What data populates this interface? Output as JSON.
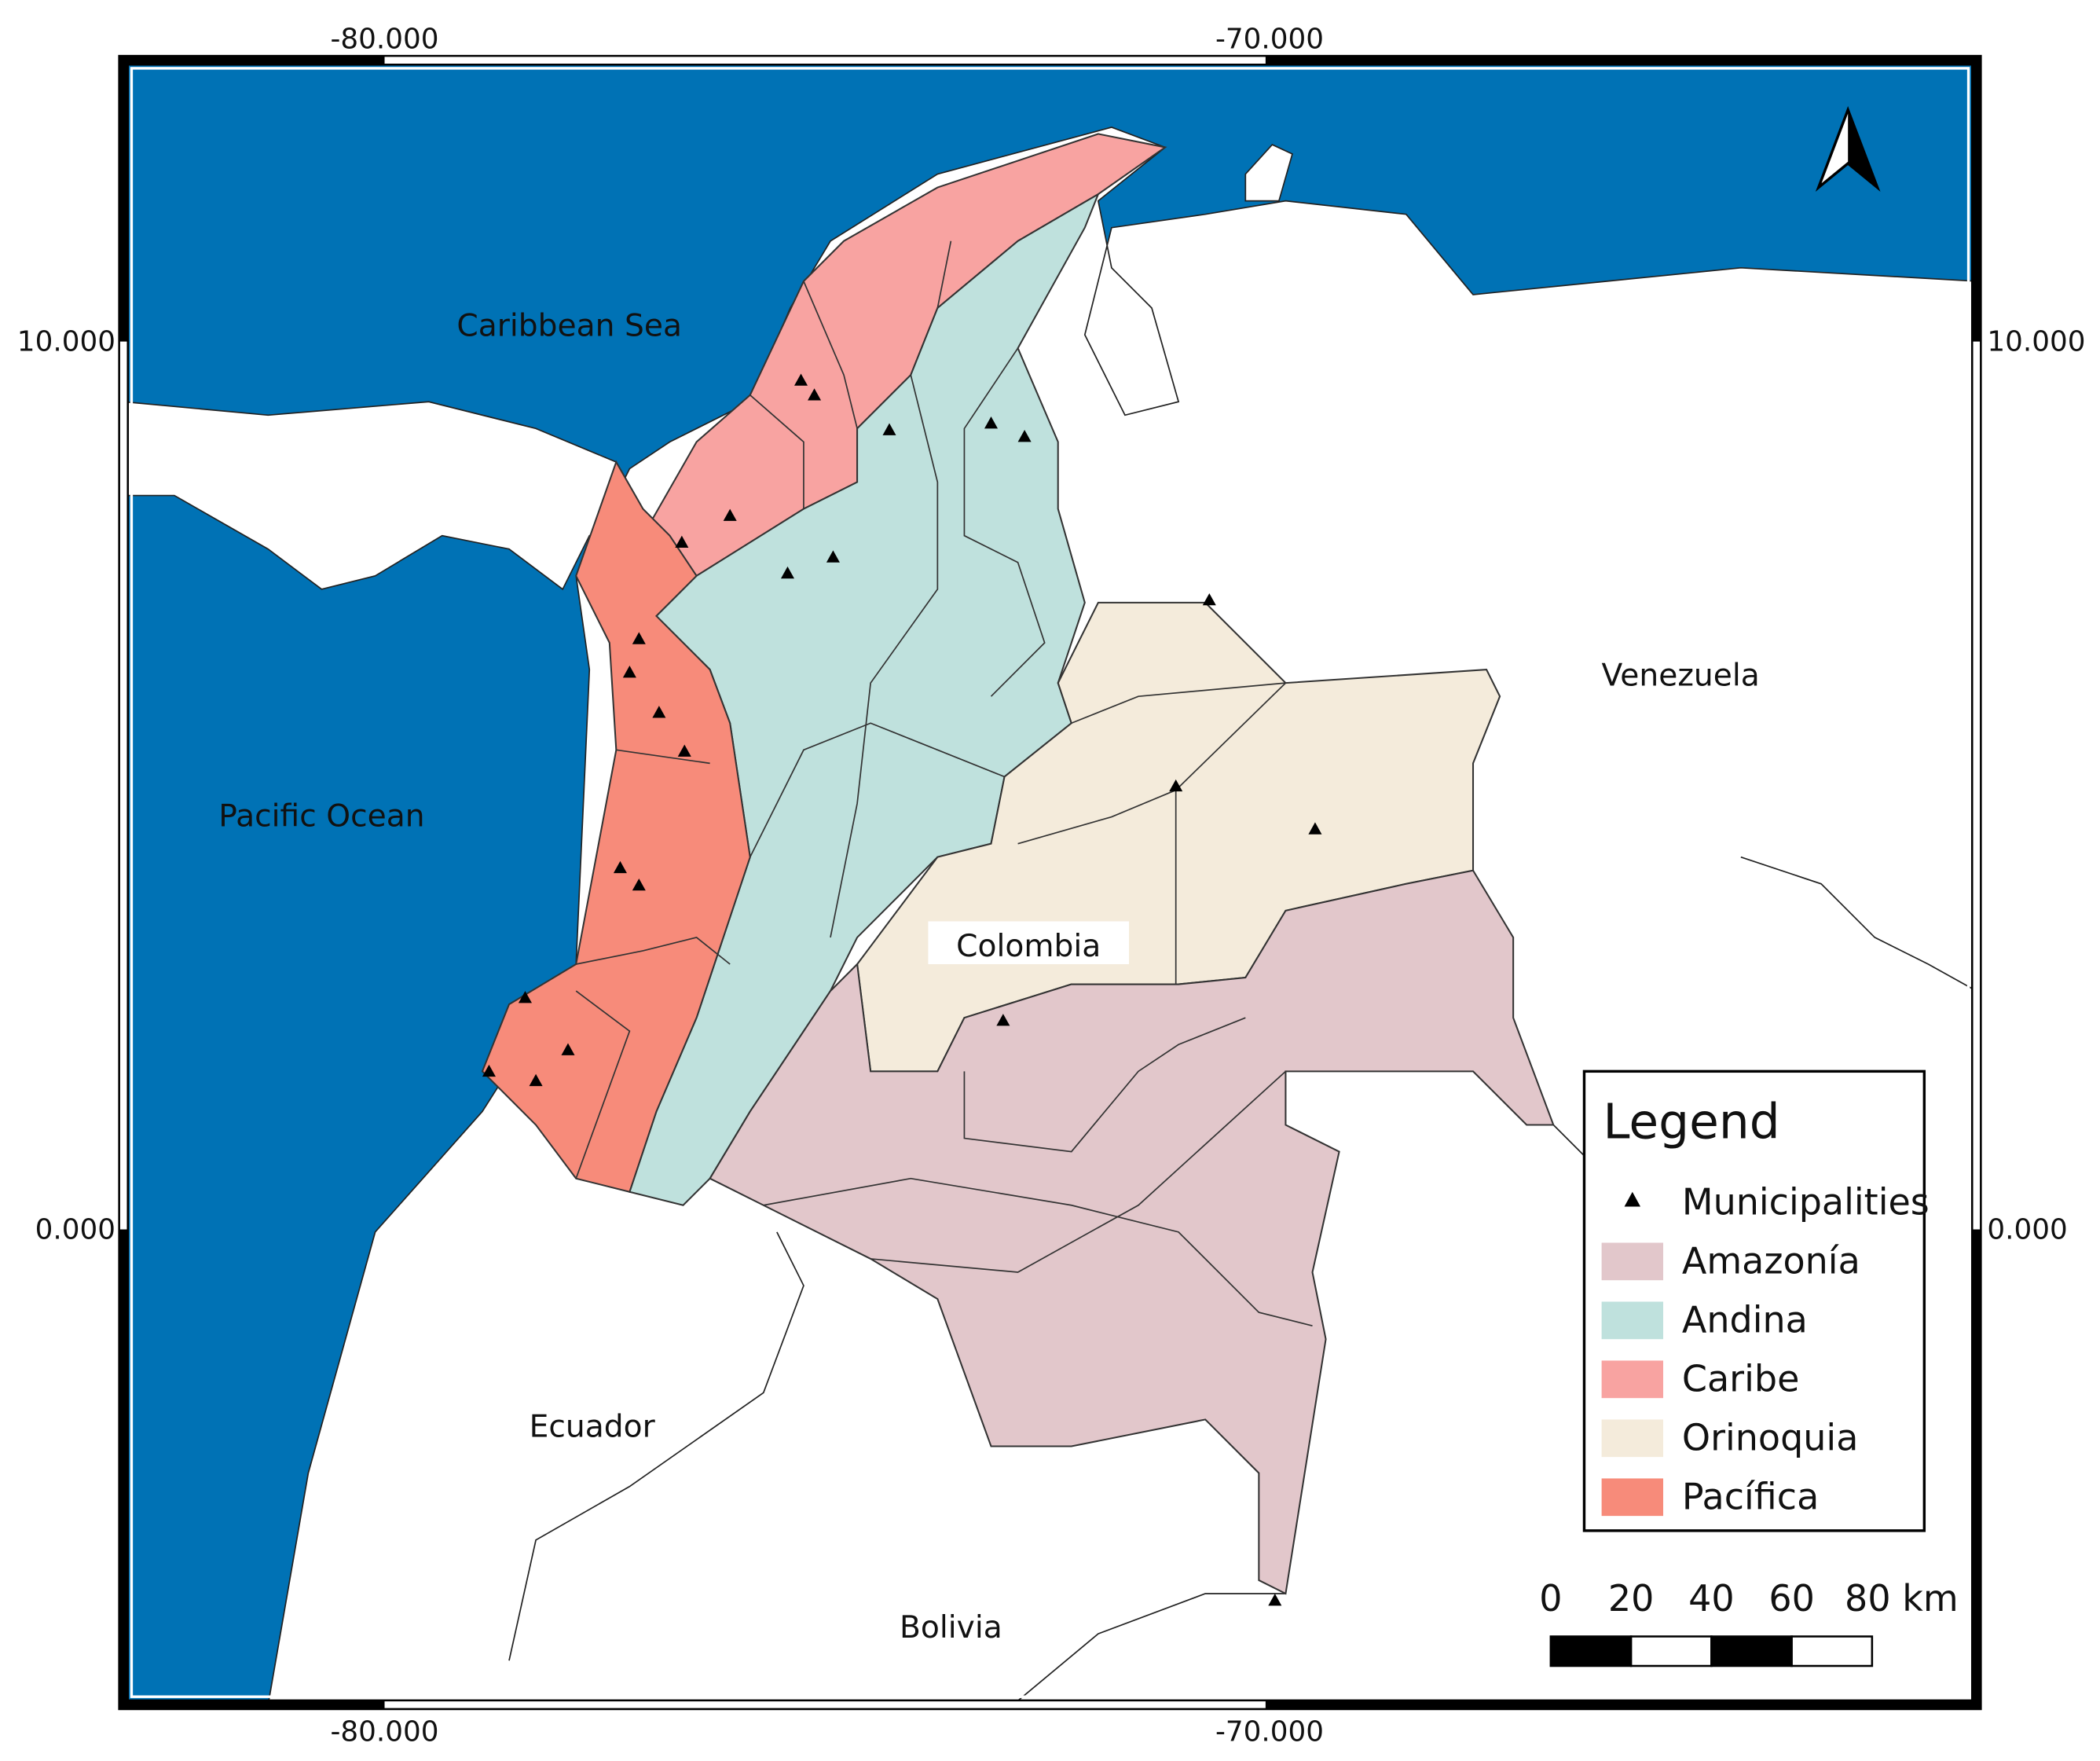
{
  "map": {
    "grid_labels": {
      "top": [
        "-80.000",
        "-70.000"
      ],
      "bottom": [
        "-80.000",
        "-70.000"
      ],
      "left": [
        "10.000",
        "0.000"
      ],
      "right": [
        "10.000",
        "0.000"
      ]
    },
    "place_labels": [
      "Caribbean Sea",
      "Pacific Ocean",
      "Venezuela",
      "Colombia",
      "Ecuador",
      "Bolivia"
    ],
    "legend": {
      "title": "Legend",
      "items": [
        {
          "label": "Municipalities",
          "color": "#000000"
        },
        {
          "label": "Amazonía",
          "color": "#e2c7cb"
        },
        {
          "label": "Andina",
          "color": "#bfe1dd"
        },
        {
          "label": "Caribe",
          "color": "#f8a3a1"
        },
        {
          "label": "Orinoquia",
          "color": "#f4ebdb"
        },
        {
          "label": "Pacífica",
          "color": "#f78b7a"
        }
      ]
    },
    "scale_bar": {
      "labels": [
        "0",
        "20",
        "40",
        "60",
        "80 km"
      ]
    }
  }
}
